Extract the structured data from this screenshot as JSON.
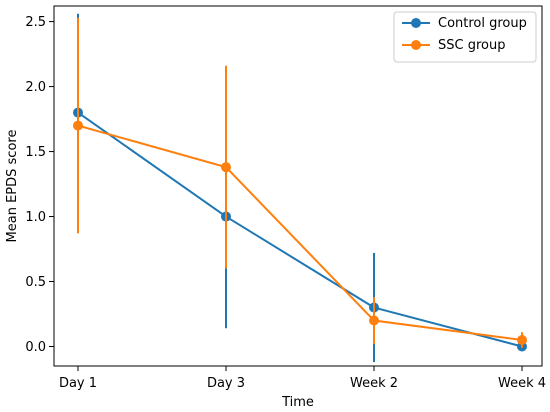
{
  "chart_data": {
    "type": "line",
    "x": [
      "Day 1",
      "Day 3",
      "Week 2",
      "Week 4"
    ],
    "xlabel": "Time",
    "ylabel": "Mean EPDS score",
    "ylim": [
      -0.15,
      2.62
    ],
    "yticks": [
      "0.0",
      "0.5",
      "1.0",
      "1.5",
      "2.0",
      "2.5"
    ],
    "legend_position": "top-right",
    "grid": false,
    "series": [
      {
        "name": "Control group",
        "color": "#1f77b4",
        "values": [
          1.8,
          1.0,
          0.3,
          0.0
        ],
        "error": [
          0.76,
          0.86,
          0.42,
          0.0
        ]
      },
      {
        "name": "SSC group",
        "color": "#ff7f0e",
        "values": [
          1.7,
          1.38,
          0.2,
          0.05
        ],
        "error": [
          0.83,
          0.78,
          0.18,
          0.06
        ]
      }
    ]
  }
}
